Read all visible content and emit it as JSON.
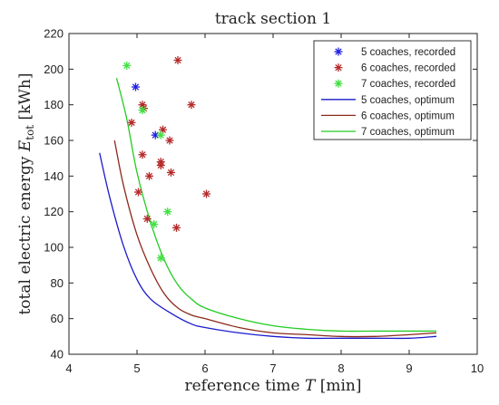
{
  "chart_data": {
    "type": "line",
    "title": "track section 1",
    "xlabel_main": "reference time ",
    "xlabel_symbol": "T",
    "xlabel_unit": " [min]",
    "ylabel_main": "total electric energy ",
    "ylabel_symbol": "E",
    "ylabel_sub": "tot",
    "ylabel_unit": " [kWh]",
    "xlim": [
      4,
      10
    ],
    "ylim": [
      40,
      220
    ],
    "xticks": [
      4,
      5,
      6,
      7,
      8,
      9,
      10
    ],
    "yticks": [
      40,
      60,
      80,
      100,
      120,
      140,
      160,
      180,
      200,
      220
    ],
    "grid": false,
    "legend_position": "top-right",
    "scatter_series": [
      {
        "name": "5 coaches, recorded",
        "color": "#2020e0",
        "points": [
          [
            4.98,
            190
          ],
          [
            5.27,
            163
          ]
        ]
      },
      {
        "name": "6 coaches, recorded",
        "color": "#b52a2a",
        "points": [
          [
            5.6,
            205
          ],
          [
            5.8,
            180
          ],
          [
            5.08,
            180
          ],
          [
            5.1,
            178
          ],
          [
            4.92,
            170
          ],
          [
            5.38,
            166
          ],
          [
            5.48,
            160
          ],
          [
            5.08,
            152
          ],
          [
            5.35,
            148
          ],
          [
            5.35,
            146
          ],
          [
            5.5,
            142
          ],
          [
            5.18,
            140
          ],
          [
            5.02,
            131
          ],
          [
            6.02,
            130
          ],
          [
            5.15,
            116
          ],
          [
            5.58,
            111
          ]
        ]
      },
      {
        "name": "7 coaches, recorded",
        "color": "#40e040",
        "points": [
          [
            4.85,
            202
          ],
          [
            5.08,
            177
          ],
          [
            5.35,
            163
          ],
          [
            5.45,
            120
          ],
          [
            5.25,
            113
          ],
          [
            5.35,
            94
          ]
        ]
      }
    ],
    "line_series": [
      {
        "name": "5 coaches, optimum",
        "color": "#1a1acc",
        "x": [
          4.45,
          4.6,
          4.8,
          5.0,
          5.2,
          5.5,
          5.8,
          6.0,
          6.5,
          7.0,
          7.5,
          8.0,
          8.5,
          9.0,
          9.4
        ],
        "y": [
          153,
          128,
          101,
          82,
          71,
          63,
          57,
          55,
          52,
          50,
          49,
          49,
          49,
          49,
          50
        ]
      },
      {
        "name": "6 coaches, optimum",
        "color": "#8b2a1a",
        "x": [
          4.67,
          4.8,
          5.0,
          5.2,
          5.4,
          5.6,
          5.8,
          6.0,
          6.5,
          7.0,
          7.5,
          8.0,
          8.5,
          9.0,
          9.4
        ],
        "y": [
          160,
          135,
          107,
          88,
          74,
          66,
          62,
          60,
          55,
          52,
          51,
          50,
          50,
          51,
          52
        ]
      },
      {
        "name": "7 coaches, optimum",
        "color": "#22cc22",
        "x": [
          4.7,
          4.85,
          5.0,
          5.2,
          5.4,
          5.6,
          5.8,
          6.0,
          6.5,
          7.0,
          7.5,
          8.0,
          8.5,
          9.0,
          9.4
        ],
        "y": [
          195,
          172,
          142,
          114,
          93,
          79,
          71,
          66,
          60,
          56,
          54,
          53,
          53,
          53,
          53
        ]
      }
    ]
  }
}
